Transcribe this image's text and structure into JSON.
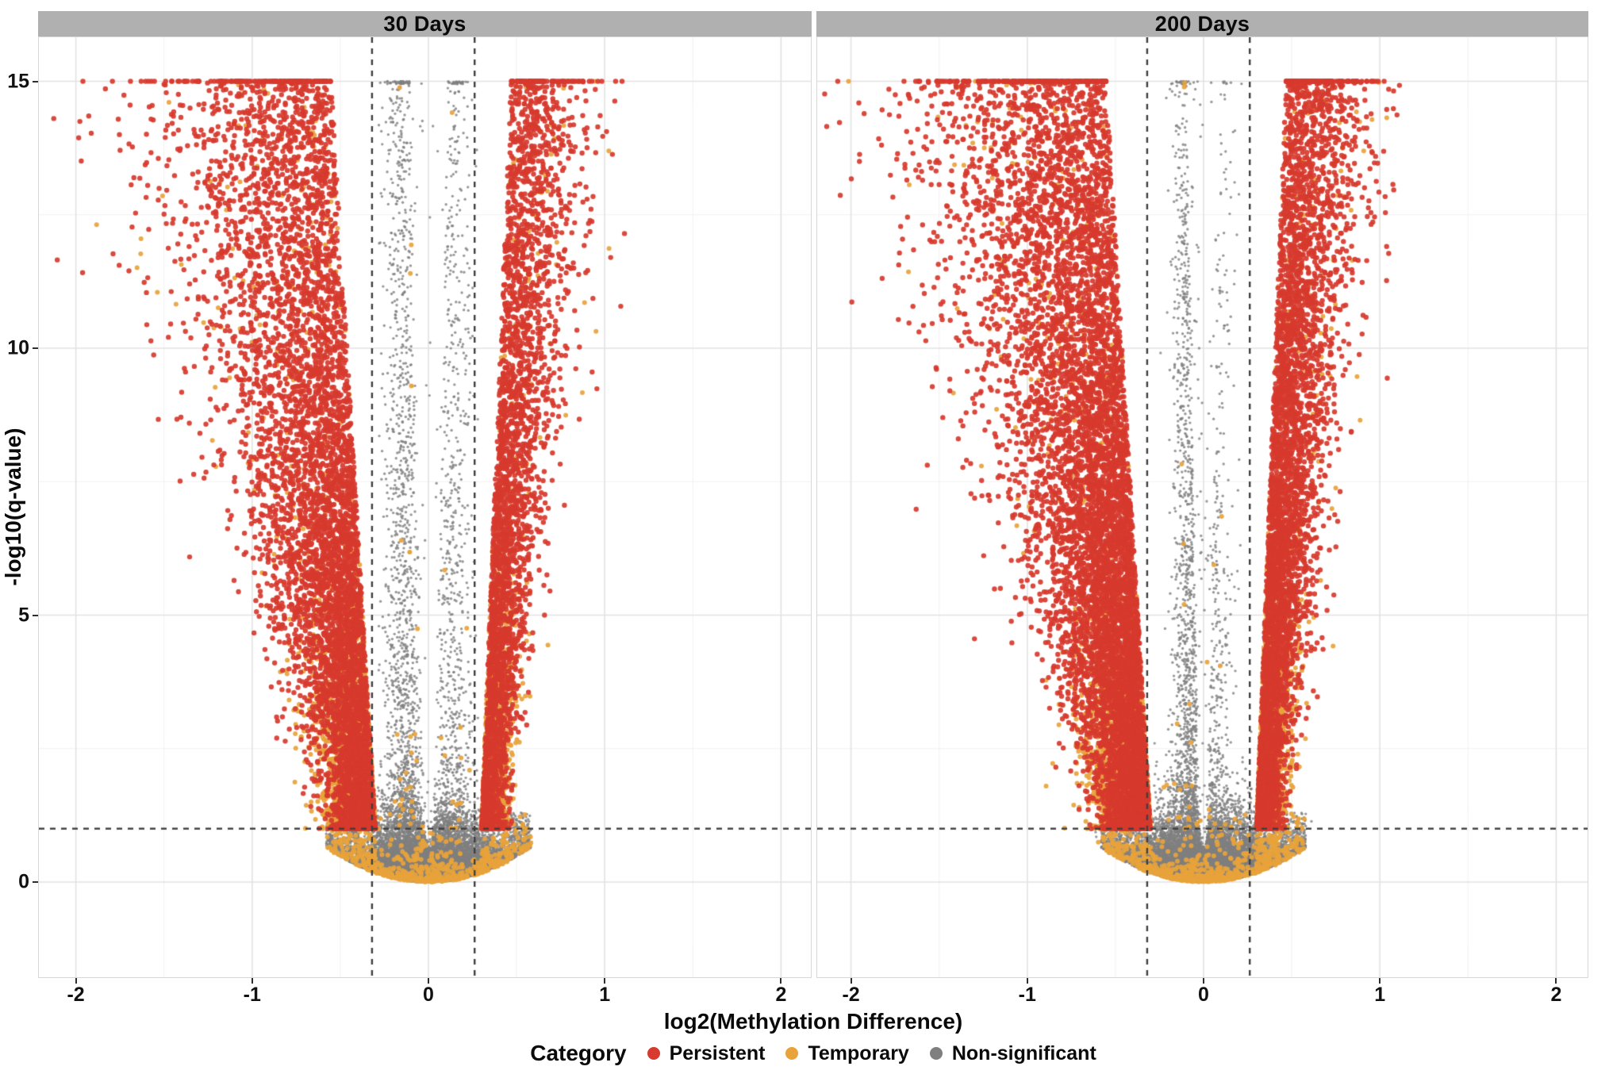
{
  "chart_data": {
    "type": "scatter",
    "subtype": "faceted volcano plot",
    "title": "",
    "xlabel": "log2(Methylation Difference)",
    "ylabel": "-log10(q-value)",
    "x_ticks": [
      "-2",
      "-1",
      "0",
      "1",
      "2"
    ],
    "x_tick_values": [
      -2,
      -1,
      0,
      1,
      2
    ],
    "y_ticks": [
      "0",
      "5",
      "10",
      "15"
    ],
    "y_tick_values": [
      0,
      5,
      10,
      15
    ],
    "x_minor_gridlines": [
      -1.5,
      -0.5,
      0.5,
      1.5
    ],
    "y_minor_gridlines": [
      2.5,
      7.5,
      12.5
    ],
    "x_range": [
      -2.21,
      2.18
    ],
    "y_range": [
      -1.78,
      15.84
    ],
    "y_cap": 15,
    "grid": "on",
    "legend_position": "bottom",
    "thresholds": {
      "hline_qvalue": 1,
      "vline_left": -0.32,
      "vline_right": 0.262
    },
    "facets": [
      {
        "title": "30 Days",
        "cloud": {
          "seed": 20301,
          "core": {
            "n": 16000,
            "sd": 0.16,
            "uniform_frac": 0.2,
            "uniform_halfwidth": 0.58,
            "exp_mean": 0.32,
            "bottom_k": 1.9,
            "skip_above_y": 1.3,
            "skip_abs_x": 0.29,
            "orange_frac_outer": 0.12,
            "orange_frac_inner": 0.015
          },
          "notch": {
            "y_start": 0.65,
            "base": 0.012,
            "slope": 0.035,
            "keep_frac": 0.08
          },
          "columns": {
            "n": 2500,
            "centers": [
              -0.14,
              0.13
            ],
            "sds": [
              0.06,
              0.065
            ],
            "left_weight": 0.62,
            "xmax": 0.285,
            "gap_base": 0.025,
            "gap_slope": 0.0055,
            "yspan": 14.8,
            "pow": 1.7,
            "orange_low_y": 3,
            "orange_frac_low": 0.03,
            "orange_frac_high": 0.008
          },
          "rim": {
            "n": 240,
            "sd": 0.22,
            "xmax": 0.55,
            "exp_mean": 0.05
          },
          "wings": {
            "base": 0.3,
            "yspan": 14.6,
            "y_pow": 2.4,
            "left": {
              "n": 10000,
              "drift": 0.018,
              "sd0": 0.1,
              "sd_slope": 0.03,
              "xclip": 2.15
            },
            "right": {
              "n": 5600,
              "drift": 0.012,
              "sd0": 0.05,
              "sd_slope": 0.013,
              "xclip": 1.12
            },
            "red_base": 0.18,
            "red_y_coef": 0.125,
            "red_x_coef": 0.55,
            "red_max": 0.95
          }
        }
      },
      {
        "title": "200 Days",
        "cloud": {
          "seed": 77702,
          "core": {
            "n": 17000,
            "sd": 0.165,
            "uniform_frac": 0.2,
            "uniform_halfwidth": 0.58,
            "exp_mean": 0.32,
            "bottom_k": 1.9,
            "skip_above_y": 1.3,
            "skip_abs_x": 0.29,
            "orange_frac_outer": 0.12,
            "orange_frac_inner": 0.015
          },
          "notch": {
            "y_start": 0.65,
            "base": 0.012,
            "slope": 0.035,
            "keep_frac": 0.08
          },
          "columns": {
            "n": 2600,
            "centers": [
              -0.08,
              0.05
            ],
            "sds": [
              0.05,
              0.06
            ],
            "left_weight": 0.66,
            "xmax": 0.285,
            "gap_base": 0.022,
            "gap_slope": 0.005,
            "yspan": 14.8,
            "pow": 1.7,
            "orange_low_y": 3,
            "orange_frac_low": 0.03,
            "orange_frac_high": 0.008
          },
          "rim": {
            "n": 260,
            "sd": 0.22,
            "xmax": 0.55,
            "exp_mean": 0.05
          },
          "wings": {
            "base": 0.3,
            "yspan": 14.6,
            "y_pow": 2.4,
            "left": {
              "n": 13000,
              "drift": 0.018,
              "sd0": 0.105,
              "sd_slope": 0.031,
              "xclip": 2.15
            },
            "right": {
              "n": 8200,
              "drift": 0.012,
              "sd0": 0.055,
              "sd_slope": 0.013,
              "xclip": 1.12
            },
            "red_base": 0.18,
            "red_y_coef": 0.125,
            "red_x_coef": 0.55,
            "red_max": 0.95
          }
        }
      }
    ],
    "legend": {
      "title": "Category",
      "items": [
        {
          "label": "Persistent",
          "color": "#d73a2e"
        },
        {
          "label": "Temporary",
          "color": "#e8a33b"
        },
        {
          "label": "Non-significant",
          "color": "#7f7f7f"
        }
      ]
    },
    "point_sizes": {
      "significant_radius_px": 3.2,
      "nonsignificant_radius_px": 1.7
    }
  },
  "style_colors": {
    "strip_background": "#b0b0b0",
    "grid_major": "#e2e2e2",
    "grid_minor": "#f1f1f1",
    "dashed_line": "#3f3f3f",
    "panel_border": "#d7d7d7",
    "tick_mark": "#2e2e2e"
  }
}
